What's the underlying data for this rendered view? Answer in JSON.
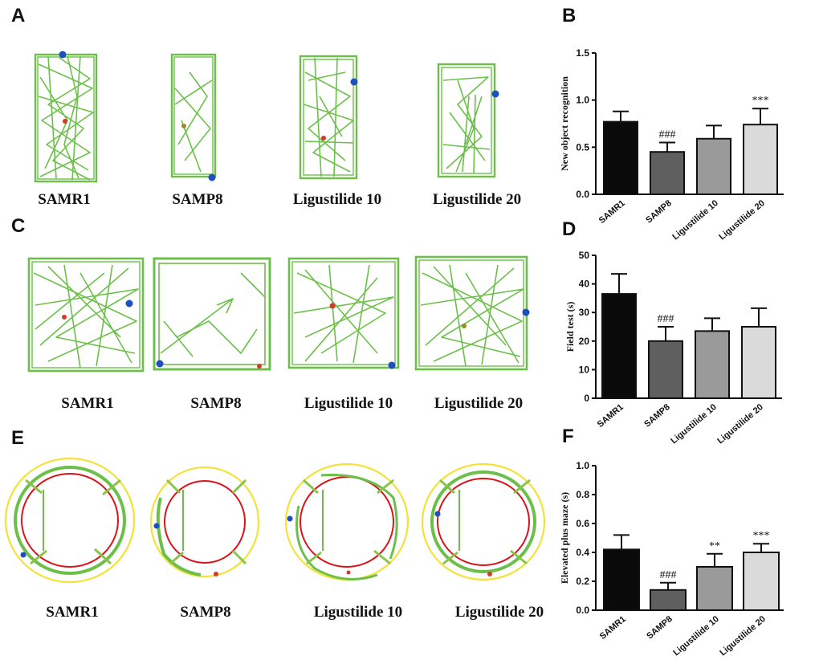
{
  "panels": {
    "A": {
      "letter": "A",
      "groups": [
        "SAMR1",
        "SAMP8",
        "Ligustilide 10",
        "Ligustilide 20"
      ]
    },
    "C": {
      "letter": "C",
      "groups": [
        "SAMR1",
        "SAMP8",
        "Ligustilide 10",
        "Ligustilide 20"
      ]
    },
    "E": {
      "letter": "E",
      "groups": [
        "SAMR1",
        "SAMP8",
        "Ligustilide 10",
        "Ligustilide 20"
      ]
    }
  },
  "colors": {
    "track": "#6cc04a",
    "start_marker": "#1f4fbf",
    "end_marker": "#d23b2a",
    "maze_outer": "#f2e23a",
    "maze_inner": "#d9141a",
    "bar_fills": [
      "#0a0a0a",
      "#5f5f5f",
      "#9a9a9a",
      "#dadada"
    ]
  },
  "chart_data": [
    {
      "letter": "B",
      "type": "bar",
      "categories": [
        "SAMR1",
        "SAMP8",
        "Ligustilide 10",
        "Ligustilide 20"
      ],
      "values": [
        0.77,
        0.45,
        0.59,
        0.74
      ],
      "errors": [
        0.11,
        0.1,
        0.14,
        0.17
      ],
      "annotations": [
        "",
        "###",
        "",
        "***"
      ],
      "ylabel": "New object recognition",
      "ylim": [
        0,
        1.5
      ],
      "yticks": [
        0.0,
        0.5,
        1.0,
        1.5
      ],
      "ytick_labels": [
        "0.0",
        "0.5",
        "1.0",
        "1.5"
      ]
    },
    {
      "letter": "D",
      "type": "bar",
      "categories": [
        "SAMR1",
        "SAMP8",
        "Ligustilide 10",
        "Ligustilide 20"
      ],
      "values": [
        36.5,
        20,
        23.5,
        25
      ],
      "errors": [
        7,
        5,
        4.5,
        6.5
      ],
      "annotations": [
        "",
        "###",
        "",
        ""
      ],
      "ylabel": "Field test (s)",
      "ylim": [
        0,
        50
      ],
      "yticks": [
        0,
        10,
        20,
        30,
        40,
        50
      ],
      "ytick_labels": [
        "0",
        "10",
        "20",
        "30",
        "40",
        "50"
      ]
    },
    {
      "letter": "F",
      "type": "bar",
      "categories": [
        "SAMR1",
        "SAMP8",
        "Ligustilide 10",
        "Ligustilide 20"
      ],
      "values": [
        0.42,
        0.14,
        0.3,
        0.4
      ],
      "errors": [
        0.1,
        0.05,
        0.09,
        0.06
      ],
      "annotations": [
        "",
        "###",
        "**",
        "***"
      ],
      "ylabel": "Elevated plus maze (s)",
      "ylim": [
        0,
        1.0
      ],
      "yticks": [
        0.0,
        0.2,
        0.4,
        0.6,
        0.8,
        1.0
      ],
      "ytick_labels": [
        "0.0",
        "0.2",
        "0.4",
        "0.6",
        "0.8",
        "1.0"
      ]
    }
  ]
}
